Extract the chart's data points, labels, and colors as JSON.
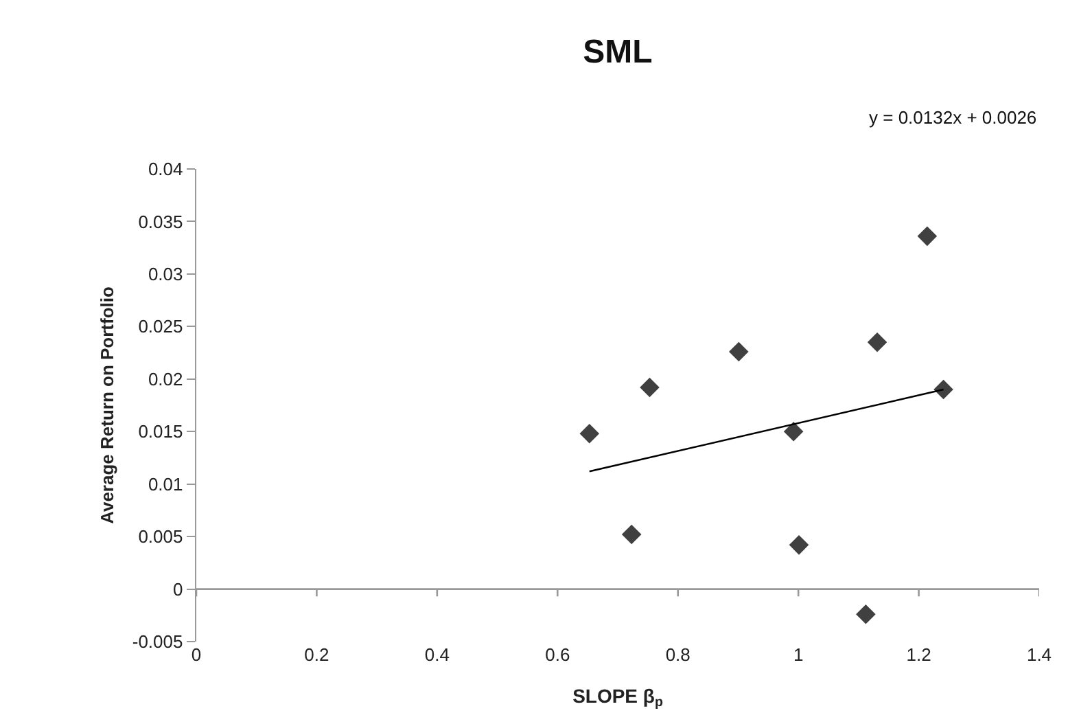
{
  "chart_data": {
    "type": "scatter",
    "title": "SML",
    "xlabel": "SLOPE β$_{p}$",
    "ylabel": "Average Return on Portfolio",
    "annotations": [
      "y = 0.0132x + 0.0026"
    ],
    "series": [
      {
        "color": "#404040",
        "marker": "diamond",
        "x": [
          0.653,
          0.753,
          0.723,
          0.901,
          0.992,
          1.001,
          1.112,
          1.131,
          1.214,
          1.241
        ],
        "values": [
          0.0148,
          0.0192,
          0.0052,
          0.0226,
          0.015,
          0.0042,
          -0.0024,
          0.0235,
          0.0336,
          0.019
        ]
      },
      {
        "type": "line",
        "color": "#000000",
        "marker": "none",
        "x": [
          0.653,
          1.241
        ],
        "values": [
          0.0112,
          0.019
        ]
      }
    ],
    "xlim": [
      0,
      1.4
    ],
    "xticks": [
      0,
      0.2,
      0.4,
      0.6,
      0.8,
      1,
      1.2,
      1.4
    ],
    "ylim": [
      -0.005,
      0.04
    ],
    "yticks": [
      -0.005,
      0,
      0.005,
      0.01,
      0.015,
      0.02,
      0.025,
      0.03,
      0.035,
      0.04
    ],
    "grid": false
  }
}
